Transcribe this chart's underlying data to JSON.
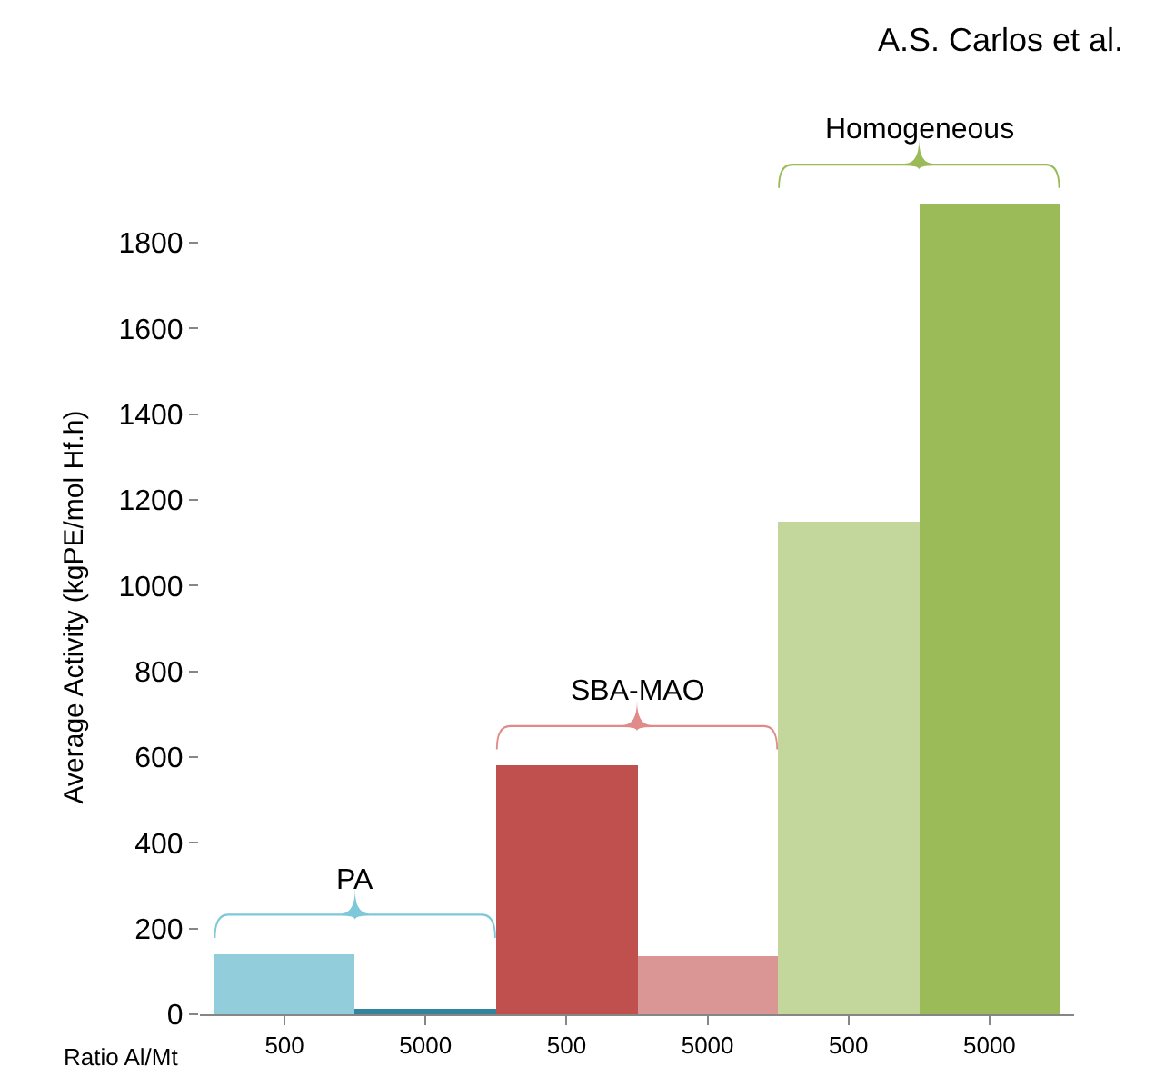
{
  "chart_data": {
    "type": "bar",
    "ylabel": "Average Activity (kgPE/mol Hf.h)",
    "xlabel": "Ratio Al/Mt",
    "categories": [
      "500",
      "5000",
      "500",
      "5000",
      "500",
      "5000"
    ],
    "values": [
      140,
      12,
      580,
      135,
      1150,
      1890
    ],
    "colors": [
      "#92cddc",
      "#31849b",
      "#c0504d",
      "#d99694",
      "#c3d69b",
      "#9bbb59"
    ],
    "ylim": [
      0,
      1900
    ],
    "yticks": [
      0,
      200,
      400,
      600,
      800,
      1000,
      1200,
      1400,
      1600,
      1800
    ],
    "annotations": [
      "A.S. Carlos et al.",
      "PA",
      "SBA-MAO",
      "Homogeneous"
    ]
  }
}
